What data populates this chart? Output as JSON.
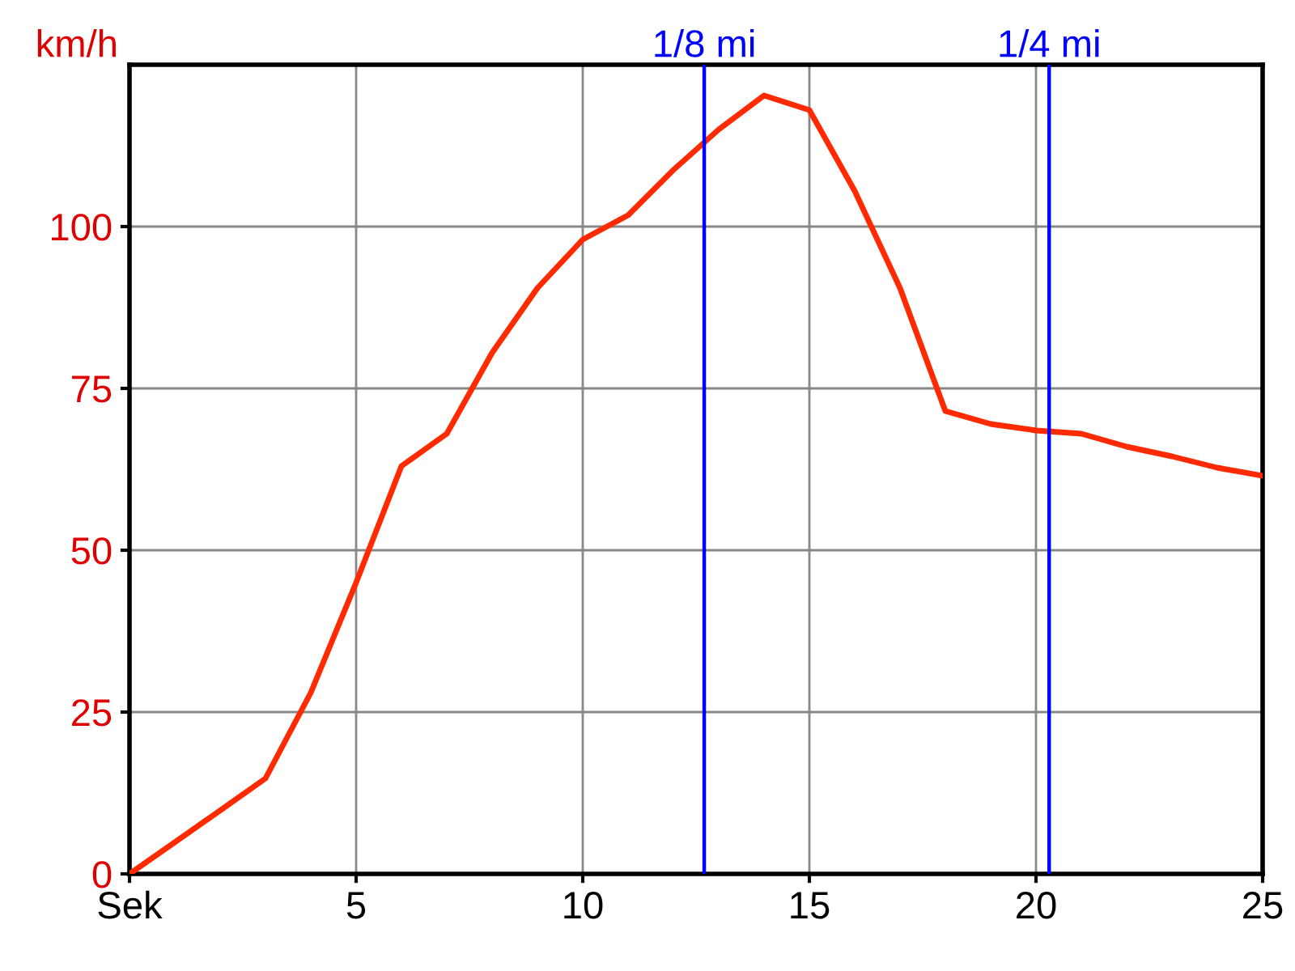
{
  "chart_data": {
    "type": "line",
    "ylabel": "km/h",
    "x": [
      0,
      1,
      2,
      3,
      4,
      5,
      6,
      7,
      8,
      9,
      10,
      11,
      12,
      13,
      14,
      15,
      16,
      17,
      18,
      19,
      20,
      21,
      22,
      23,
      24,
      25
    ],
    "series": [
      {
        "color": "#ff2a00",
        "values": [
          0,
          4.9,
          9.8,
          14.75,
          28,
          45,
          63,
          68,
          80.5,
          90.5,
          98,
          101.75,
          108.75,
          115,
          120.25,
          118,
          105.5,
          90.5,
          71.5,
          69.5,
          68.5,
          68,
          66,
          64.5,
          62.75,
          61.5
        ]
      }
    ],
    "xlim": [
      0,
      25
    ],
    "xticks": [
      {
        "value": 0,
        "label": "Sek"
      },
      5,
      10,
      15,
      20,
      25
    ],
    "ylim": [
      0,
      125
    ],
    "yticks": [
      0,
      25,
      50,
      75,
      100
    ],
    "ref_lines": [
      {
        "axis": "x",
        "value": 12.68,
        "label": "1/8 mi",
        "color": "#0000ff"
      },
      {
        "axis": "x",
        "value": 20.29,
        "label": "1/4 mi",
        "color": "#0000ff"
      }
    ],
    "grid": true,
    "marker": "none",
    "line_style": "solid"
  }
}
